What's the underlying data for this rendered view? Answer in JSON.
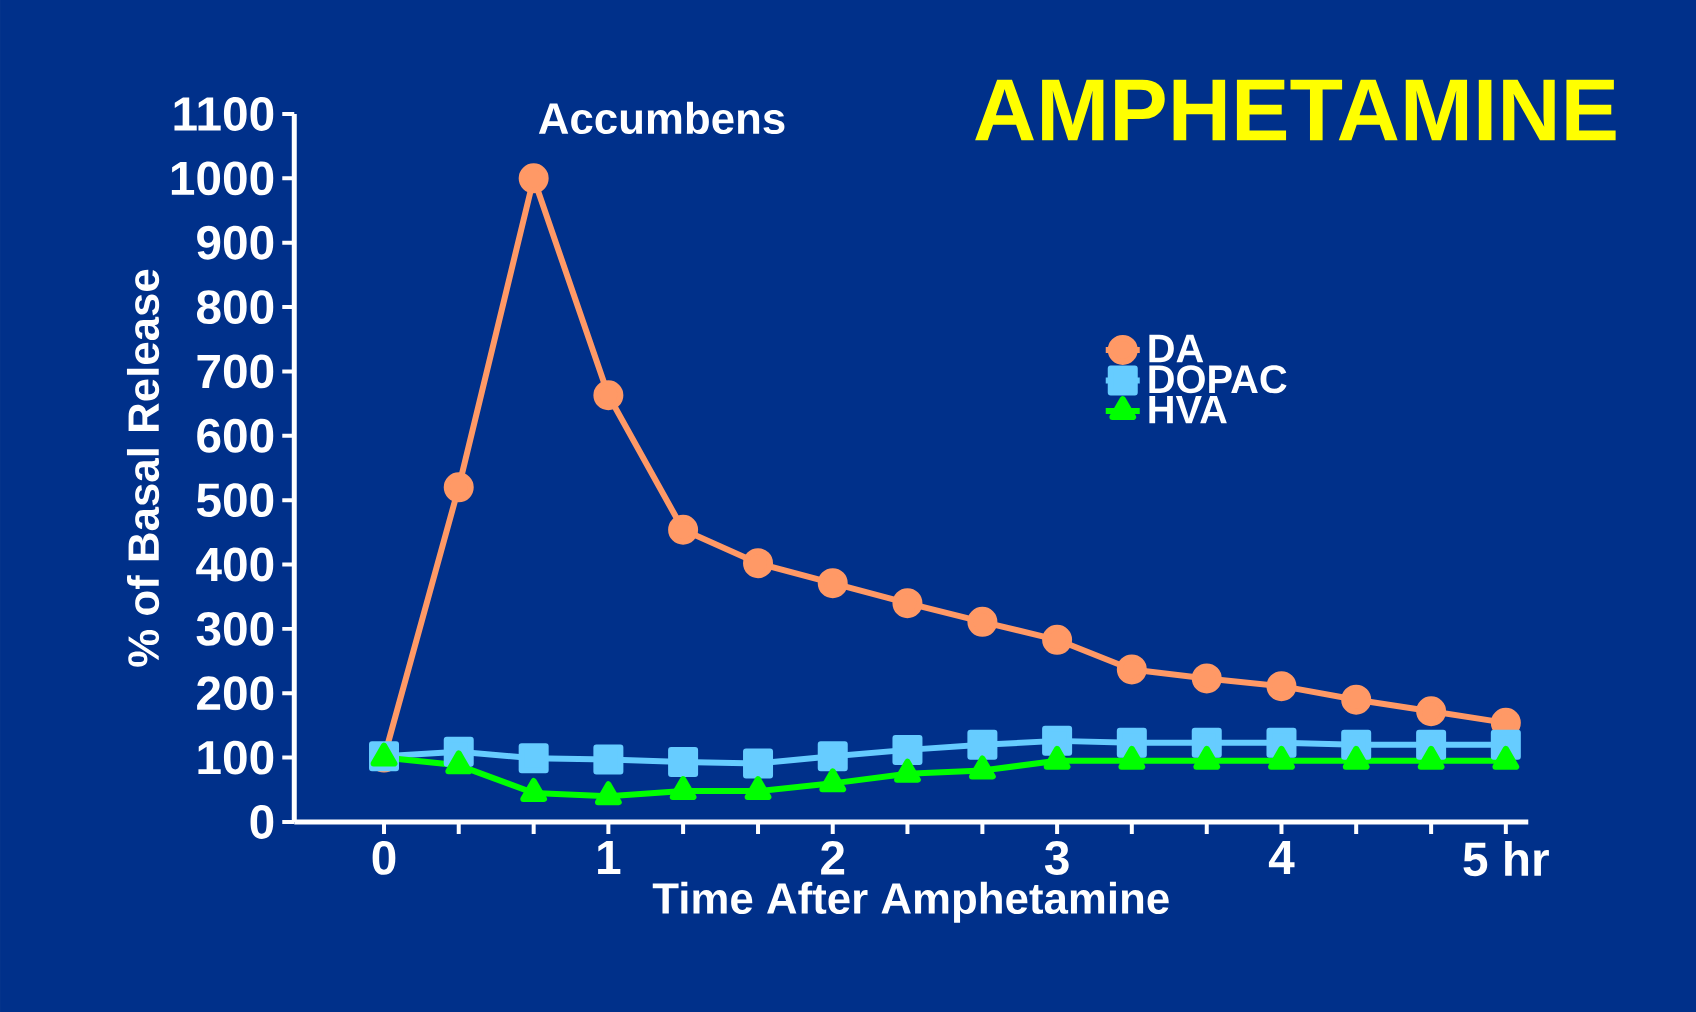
{
  "chart_data": {
    "type": "line",
    "title": "AMPHETAMINE",
    "subtitle": "Accumbens",
    "xlabel": "Time After Amphetamine",
    "ylabel": "% of Basal Release",
    "x": [
      0,
      0.333,
      0.667,
      1,
      1.333,
      1.667,
      2,
      2.333,
      2.667,
      3,
      3.333,
      3.667,
      4,
      4.333,
      4.667,
      5
    ],
    "series": [
      {
        "name": "DA",
        "color": "#ff9966",
        "marker": "circle",
        "values": [
          100,
          520,
          1000,
          663,
          454,
          402,
          371,
          340,
          311,
          283,
          237,
          223,
          211,
          190,
          172,
          154
        ]
      },
      {
        "name": "DOPAC",
        "color": "#66ccff",
        "marker": "square",
        "values": [
          102,
          109,
          99,
          97,
          93,
          91,
          102,
          112,
          120,
          126,
          123,
          123,
          123,
          120,
          120,
          120
        ]
      },
      {
        "name": "HVA",
        "color": "#00ff00",
        "marker": "triangle",
        "values": [
          100,
          88,
          45,
          40,
          48,
          48,
          60,
          75,
          80,
          95,
          95,
          95,
          95,
          95,
          95,
          95
        ]
      }
    ],
    "xlim": [
      -0.4,
      5.1
    ],
    "ylim": [
      0,
      1100
    ],
    "xticks": [
      0,
      {
        "value": 0.333,
        "label": null
      },
      {
        "value": 0.667,
        "label": null
      },
      1,
      {
        "value": 1.333,
        "label": null
      },
      {
        "value": 1.667,
        "label": null
      },
      2,
      {
        "value": 2.333,
        "label": null
      },
      {
        "value": 2.667,
        "label": null
      },
      3,
      {
        "value": 3.333,
        "label": null
      },
      {
        "value": 3.667,
        "label": null
      },
      4,
      {
        "value": 4.333,
        "label": null
      },
      {
        "value": 4.667,
        "label": null
      },
      {
        "value": 5,
        "label": "5 hr"
      }
    ],
    "yticks": [
      0,
      100,
      200,
      300,
      400,
      500,
      600,
      700,
      800,
      900,
      1000,
      1100
    ],
    "grid": false,
    "legend": "right",
    "line_style": "solid"
  }
}
